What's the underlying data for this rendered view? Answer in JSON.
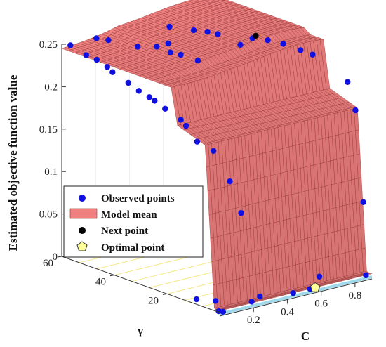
{
  "chart_data": {
    "type": "surface3d",
    "zlabel": "Estimated objective function value",
    "xlabel": "C",
    "ylabel": "γ",
    "z_ticks": [
      "0",
      "0.05",
      "0.1",
      "0.15",
      "0.2",
      "0.25"
    ],
    "x_ticks": [
      "0.2",
      "0.4",
      "0.6",
      "0.8"
    ],
    "y_ticks": [
      "20",
      "40",
      "60"
    ],
    "zlim": [
      0,
      0.25
    ],
    "xlim": [
      0,
      0.9
    ],
    "ylim": [
      0,
      60
    ],
    "grid": true,
    "surface_color": "#f08080",
    "surface_edge_color": "#8a3030",
    "legend": {
      "placement": "lower-left",
      "entries": [
        {
          "label": "Observed points",
          "marker": "dot",
          "color": "#1010e0"
        },
        {
          "label": "Model mean",
          "marker": "patch",
          "color": "#f08080"
        },
        {
          "label": "Next point",
          "marker": "dot",
          "color": "#000000"
        },
        {
          "label": "Optimal point",
          "marker": "pentagon",
          "color": "#ffff99"
        }
      ]
    },
    "series": [
      {
        "name": "Observed points",
        "points": [
          {
            "c": 0.02,
            "g": 58,
            "z": 0.25
          },
          {
            "c": 0.02,
            "g": 52,
            "z": 0.245
          },
          {
            "c": 0.02,
            "g": 48,
            "z": 0.244
          },
          {
            "c": 0.02,
            "g": 44,
            "z": 0.24
          },
          {
            "c": 0.02,
            "g": 42,
            "z": 0.236
          },
          {
            "c": 0.02,
            "g": 36,
            "z": 0.23
          },
          {
            "c": 0.02,
            "g": 32,
            "z": 0.225
          },
          {
            "c": 0.02,
            "g": 28,
            "z": 0.222
          },
          {
            "c": 0.02,
            "g": 26,
            "z": 0.22
          },
          {
            "c": 0.02,
            "g": 22,
            "z": 0.215
          },
          {
            "c": 0.05,
            "g": 18,
            "z": 0.205
          },
          {
            "c": 0.05,
            "g": 16,
            "z": 0.2
          },
          {
            "c": 0.1,
            "g": 15,
            "z": 0.18
          },
          {
            "c": 0.15,
            "g": 12,
            "z": 0.17
          },
          {
            "c": 0.2,
            "g": 9,
            "z": 0.135
          },
          {
            "c": 0.22,
            "g": 6,
            "z": 0.1
          },
          {
            "c": 0.08,
            "g": 52,
            "z": 0.262
          },
          {
            "c": 0.12,
            "g": 50,
            "z": 0.26
          },
          {
            "c": 0.2,
            "g": 44,
            "z": 0.255
          },
          {
            "c": 0.25,
            "g": 40,
            "z": 0.257
          },
          {
            "c": 0.3,
            "g": 38,
            "z": 0.25
          },
          {
            "c": 0.33,
            "g": 36,
            "z": 0.248
          },
          {
            "c": 0.38,
            "g": 44,
            "z": 0.25
          },
          {
            "c": 0.45,
            "g": 48,
            "z": 0.262
          },
          {
            "c": 0.5,
            "g": 42,
            "z": 0.262
          },
          {
            "c": 0.55,
            "g": 40,
            "z": 0.26
          },
          {
            "c": 0.58,
            "g": 38,
            "z": 0.258
          },
          {
            "c": 0.62,
            "g": 32,
            "z": 0.25
          },
          {
            "c": 0.66,
            "g": 30,
            "z": 0.258
          },
          {
            "c": 0.72,
            "g": 28,
            "z": 0.255
          },
          {
            "c": 0.78,
            "g": 26,
            "z": 0.25
          },
          {
            "c": 0.82,
            "g": 22,
            "z": 0.245
          },
          {
            "c": 0.86,
            "g": 20,
            "z": 0.24
          },
          {
            "c": 0.88,
            "g": 8,
            "z": 0.22
          },
          {
            "c": 0.88,
            "g": 5,
            "z": 0.19
          },
          {
            "c": 0.4,
            "g": 34,
            "z": 0.24
          },
          {
            "c": 0.88,
            "g": 2,
            "z": 0.085
          },
          {
            "c": 0.88,
            "g": 1,
            "z": 0.0
          },
          {
            "c": 0.62,
            "g": 2,
            "z": 0.01
          },
          {
            "c": 0.55,
            "g": 1,
            "z": 0.0
          },
          {
            "c": 0.45,
            "g": 1,
            "z": 0.0
          },
          {
            "c": 0.3,
            "g": 4,
            "z": 0.0
          },
          {
            "c": 0.22,
            "g": 2,
            "z": 0.0
          },
          {
            "c": 0.1,
            "g": 8,
            "z": 0.0
          },
          {
            "c": 0.05,
            "g": 12,
            "z": 0.0
          },
          {
            "c": 0.01,
            "g": 1,
            "z": 0.0
          },
          {
            "c": 0.02,
            "g": 0,
            "z": 0.0
          }
        ]
      },
      {
        "name": "Next point",
        "points": [
          {
            "c": 0.68,
            "g": 30,
            "z": 0.26
          }
        ]
      },
      {
        "name": "Optimal point",
        "points": [
          {
            "c": 0.58,
            "g": 1,
            "z": 0.0
          }
        ]
      }
    ]
  }
}
